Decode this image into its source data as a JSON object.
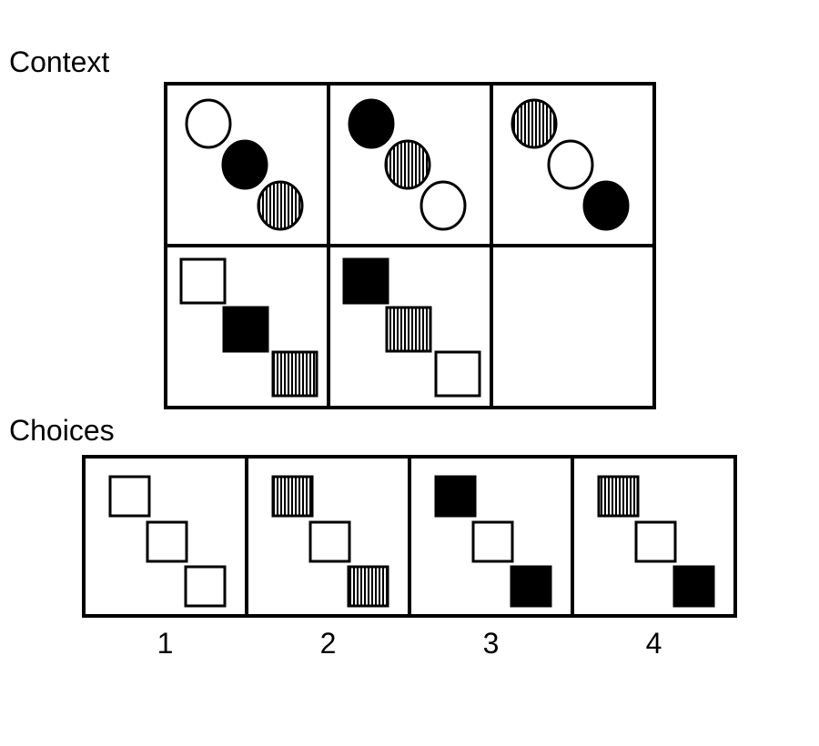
{
  "context": {
    "label": "Context",
    "rows": [
      [
        {
          "shape": "circle",
          "fills": [
            "white",
            "black",
            "striped"
          ]
        },
        {
          "shape": "circle",
          "fills": [
            "black",
            "striped",
            "white"
          ]
        },
        {
          "shape": "circle",
          "fills": [
            "striped",
            "white",
            "black"
          ]
        }
      ],
      [
        {
          "shape": "square",
          "fills": [
            "white",
            "black",
            "striped"
          ]
        },
        {
          "shape": "square",
          "fills": [
            "black",
            "striped",
            "white"
          ]
        },
        {
          "shape": "empty",
          "fills": []
        }
      ]
    ]
  },
  "choices": {
    "label": "Choices",
    "options": [
      {
        "number": "1",
        "shape": "square",
        "fills": [
          "white",
          "white",
          "white"
        ]
      },
      {
        "number": "2",
        "shape": "square",
        "fills": [
          "striped",
          "white",
          "striped"
        ]
      },
      {
        "number": "3",
        "shape": "square",
        "fills": [
          "black",
          "white",
          "black"
        ]
      },
      {
        "number": "4",
        "shape": "square",
        "fills": [
          "striped",
          "white",
          "black"
        ]
      }
    ]
  },
  "colors": {
    "black": "#000000",
    "white": "#ffffff",
    "stroke": "#000000"
  }
}
